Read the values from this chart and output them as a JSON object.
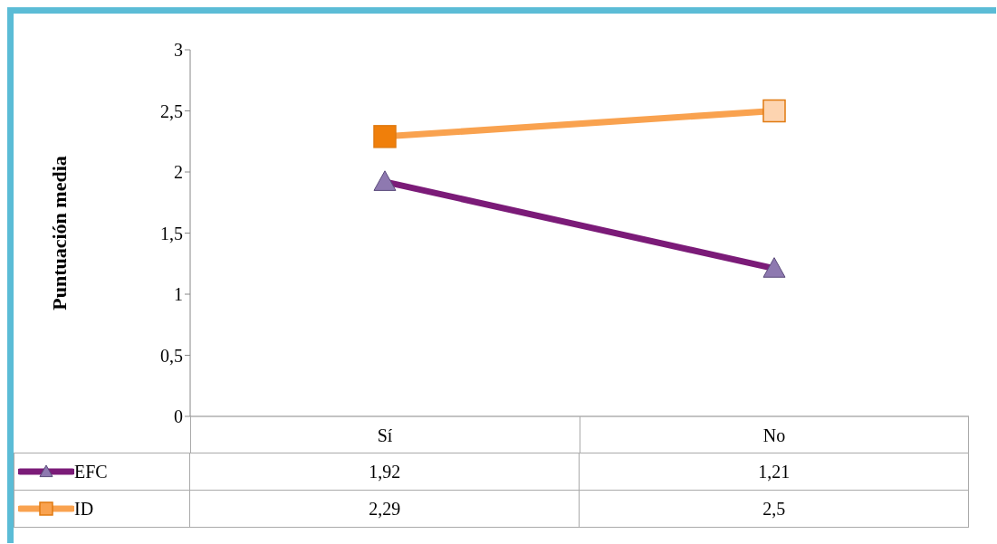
{
  "chart_data": {
    "type": "line",
    "ylabel": "Puntuación media",
    "categories": [
      "Sí",
      "No"
    ],
    "series": [
      {
        "name": "EFC",
        "color": "#7b1b78",
        "values": [
          1.92,
          1.21
        ],
        "value_labels": [
          "1,92",
          "1,21"
        ],
        "marker": "triangle"
      },
      {
        "name": "ID",
        "color": "#f9a24f",
        "values": [
          2.29,
          2.5
        ],
        "value_labels": [
          "2,29",
          "2,5"
        ],
        "marker": "square"
      }
    ],
    "ylim": [
      0,
      3
    ],
    "yticks": [
      0,
      {
        "value": 0.5,
        "label": "0,5"
      },
      1,
      {
        "value": 1.5,
        "label": "1,5"
      },
      2,
      {
        "value": 2.5,
        "label": "2,5"
      },
      3
    ],
    "grid": false,
    "legend": "bottom"
  }
}
